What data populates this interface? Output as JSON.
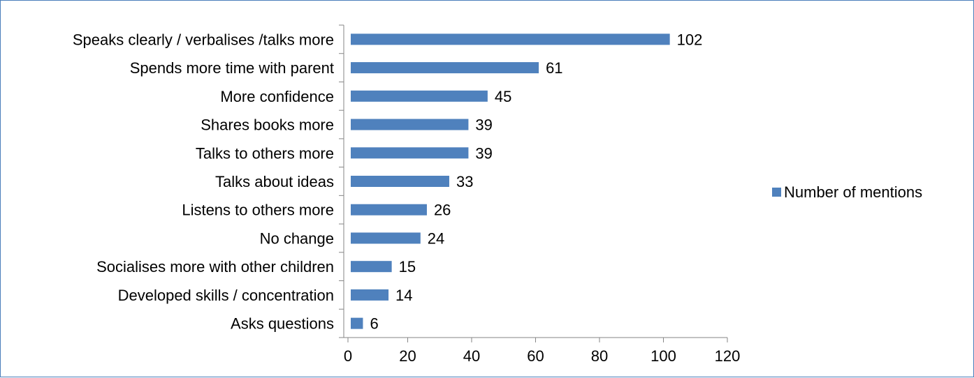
{
  "chart_data": {
    "type": "bar",
    "orientation": "horizontal",
    "categories": [
      "Speaks clearly / verbalises /talks more",
      "Spends more time with parent",
      "More confidence",
      "Shares books more",
      "Talks to others more",
      "Talks about ideas",
      "Listens to others more",
      "No change",
      "Socialises more with other children",
      "Developed skills / concentration",
      "Asks questions"
    ],
    "series": [
      {
        "name": "Number of mentions",
        "values": [
          102,
          61,
          45,
          39,
          39,
          33,
          26,
          24,
          15,
          14,
          6
        ]
      }
    ],
    "xlim": [
      0,
      120
    ],
    "x_ticks": [
      0,
      20,
      40,
      60,
      80,
      100,
      120
    ],
    "grid": false,
    "legend_position": "right",
    "bar_color": "#4f81bd",
    "frame_color": "#4a7ebb",
    "axis_color": "#868686"
  }
}
